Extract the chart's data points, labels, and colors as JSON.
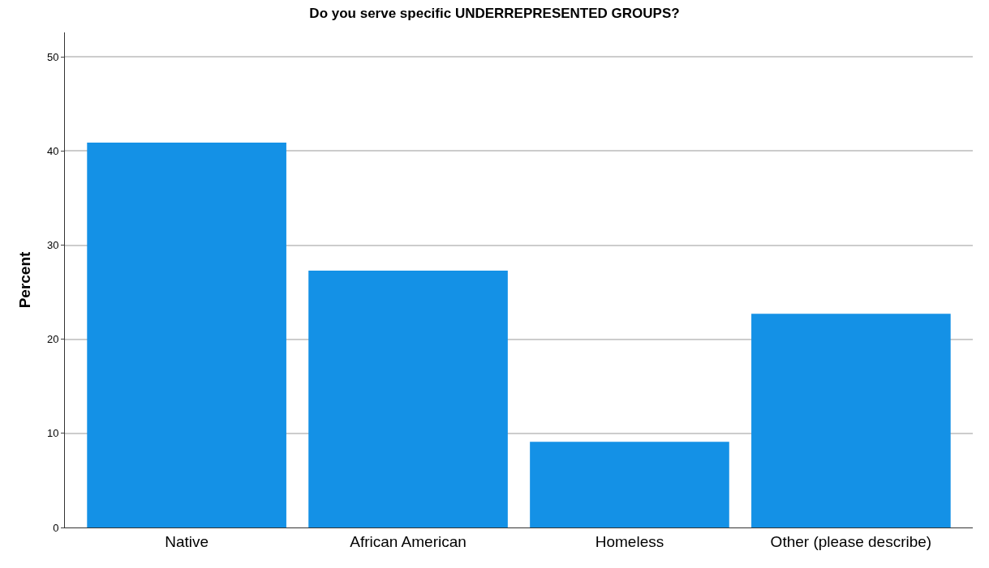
{
  "chart_data": {
    "type": "bar",
    "title": "Do you serve specific UNDERREPRESENTED GROUPS?",
    "ylabel": "Percent",
    "categories": [
      "Native",
      "African American",
      "Homeless",
      "Other (please describe)"
    ],
    "values": [
      40.9,
      27.3,
      9.1,
      22.7
    ],
    "color": "#1491e6",
    "ylim": [
      0,
      52.6
    ],
    "yticks": [
      0,
      10,
      20,
      30,
      40,
      50
    ],
    "grid": "y",
    "legend": false
  }
}
